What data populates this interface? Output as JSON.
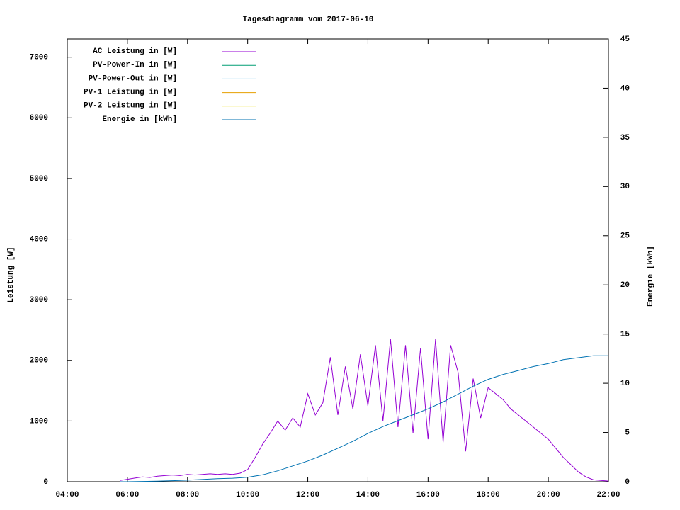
{
  "chart_data": {
    "type": "line",
    "title": "Tagesdiagramm vom 2017-06-10",
    "ylabel": "Leistung [W]",
    "y2label": "Energie [kWh]",
    "xlim": [
      4,
      22
    ],
    "xticks": [
      {
        "value": 4,
        "label": "04:00"
      },
      {
        "value": 6,
        "label": "06:00"
      },
      {
        "value": 8,
        "label": "08:00"
      },
      {
        "value": 10,
        "label": "10:00"
      },
      {
        "value": 12,
        "label": "12:00"
      },
      {
        "value": 14,
        "label": "14:00"
      },
      {
        "value": 16,
        "label": "16:00"
      },
      {
        "value": 18,
        "label": "18:00"
      },
      {
        "value": 20,
        "label": "20:00"
      },
      {
        "value": 22,
        "label": "22:00"
      }
    ],
    "ylim": [
      0,
      7300
    ],
    "yticks": [
      0,
      1000,
      2000,
      3000,
      4000,
      5000,
      6000,
      7000
    ],
    "y2lim": [
      0,
      45
    ],
    "y2ticks": [
      0,
      5,
      10,
      15,
      20,
      25,
      30,
      35,
      40,
      45
    ],
    "legend": "top-left",
    "series": [
      {
        "name": "AC Leistung in [W]",
        "color": "#9400d3",
        "x": [
          5.75,
          6,
          6.25,
          6.5,
          6.75,
          7,
          7.25,
          7.5,
          7.75,
          8,
          8.25,
          8.5,
          8.75,
          9,
          9.25,
          9.5,
          9.75,
          10,
          10.25,
          10.5,
          10.75,
          11,
          11.25,
          11.5,
          11.75,
          12,
          12.25,
          12.5,
          12.75,
          13,
          13.25,
          13.5,
          13.75,
          14,
          14.25,
          14.5,
          14.75,
          15,
          15.25,
          15.5,
          15.75,
          16,
          16.25,
          16.5,
          16.75,
          17,
          17.25,
          17.5,
          17.75,
          18,
          18.25,
          18.5,
          18.75,
          19,
          19.25,
          19.5,
          19.75,
          20,
          20.25,
          20.5,
          20.75,
          21,
          21.25,
          21.5,
          21.75,
          22
        ],
        "values": [
          20,
          40,
          60,
          80,
          70,
          90,
          100,
          110,
          100,
          120,
          110,
          120,
          130,
          120,
          130,
          120,
          140,
          200,
          400,
          620,
          800,
          1000,
          850,
          1050,
          900,
          1450,
          1100,
          1300,
          2050,
          1100,
          1900,
          1200,
          2100,
          1250,
          2250,
          1000,
          2350,
          900,
          2250,
          800,
          2200,
          700,
          2350,
          650,
          2250,
          1800,
          500,
          1700,
          1050,
          1550,
          1450,
          1350,
          1200,
          1100,
          1000,
          900,
          800,
          700,
          550,
          400,
          280,
          160,
          80,
          30,
          20,
          10
        ]
      },
      {
        "name": "PV-Power-In in [W]",
        "color": "#009e73",
        "x": [],
        "values": []
      },
      {
        "name": "PV-Power-Out in [W]",
        "color": "#56b4e9",
        "x": [],
        "values": []
      },
      {
        "name": "PV-1 Leistung in [W]",
        "color": "#e69f00",
        "x": [],
        "values": []
      },
      {
        "name": "PV-2 Leistung in [W]",
        "color": "#f0e442",
        "x": [],
        "values": []
      },
      {
        "name": "Energie in [kWh]",
        "color": "#0072b2",
        "axis": "y2",
        "x": [
          5.75,
          6,
          7,
          8,
          9,
          9.5,
          10,
          10.5,
          11,
          11.5,
          12,
          12.5,
          13,
          13.5,
          14,
          14.5,
          15,
          15.5,
          16,
          16.5,
          17,
          17.5,
          18,
          18.5,
          19,
          19.5,
          20,
          20.5,
          21,
          21.5,
          22
        ],
        "values": [
          0,
          0,
          0.05,
          0.15,
          0.3,
          0.35,
          0.45,
          0.7,
          1.1,
          1.6,
          2.1,
          2.7,
          3.4,
          4.1,
          4.9,
          5.6,
          6.2,
          6.8,
          7.4,
          8.1,
          8.9,
          9.7,
          10.4,
          10.9,
          11.3,
          11.7,
          12.0,
          12.4,
          12.6,
          12.8,
          12.8
        ]
      }
    ]
  }
}
